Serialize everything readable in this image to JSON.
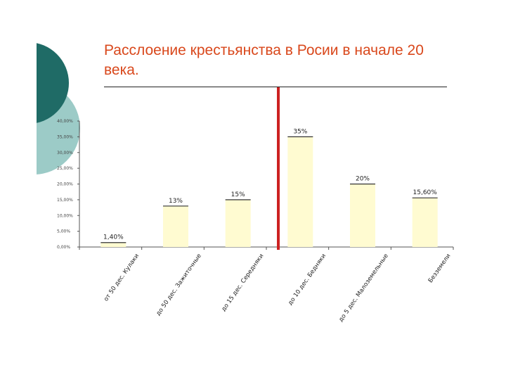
{
  "slide": {
    "title": "Расслоение крестьянства в Росии в начале 20 века.",
    "colors": {
      "title": "#d9481c",
      "deco_dark": "#1f6b66",
      "deco_light": "#9ccbc7",
      "bar_fill": "#fffbd1",
      "bar_stroke": "#d8cf8a",
      "divider_line": "#cc2222"
    }
  },
  "chart_data": {
    "type": "bar",
    "title": "",
    "xlabel": "",
    "ylabel": "",
    "ylim": [
      0,
      40
    ],
    "yticks": [
      "0,00%",
      "5,00%",
      "10,00%",
      "15,00%",
      "20,00%",
      "25,00%",
      "30,00%",
      "35,00%",
      "40,00%"
    ],
    "categories": [
      "от 50 дес. Кулаки",
      "до 50 дес. Зажиточные",
      "до 15 дес. Середняки",
      "до 10 дес. Бедняки",
      "до 5 дес. Малоземельные",
      "Безземели"
    ],
    "values": [
      1.4,
      13,
      15,
      35,
      20,
      15.6
    ],
    "data_labels": [
      "1,40%",
      "13%",
      "15%",
      "35%",
      "20%",
      "15,60%"
    ],
    "grid": false,
    "legend": "none"
  }
}
